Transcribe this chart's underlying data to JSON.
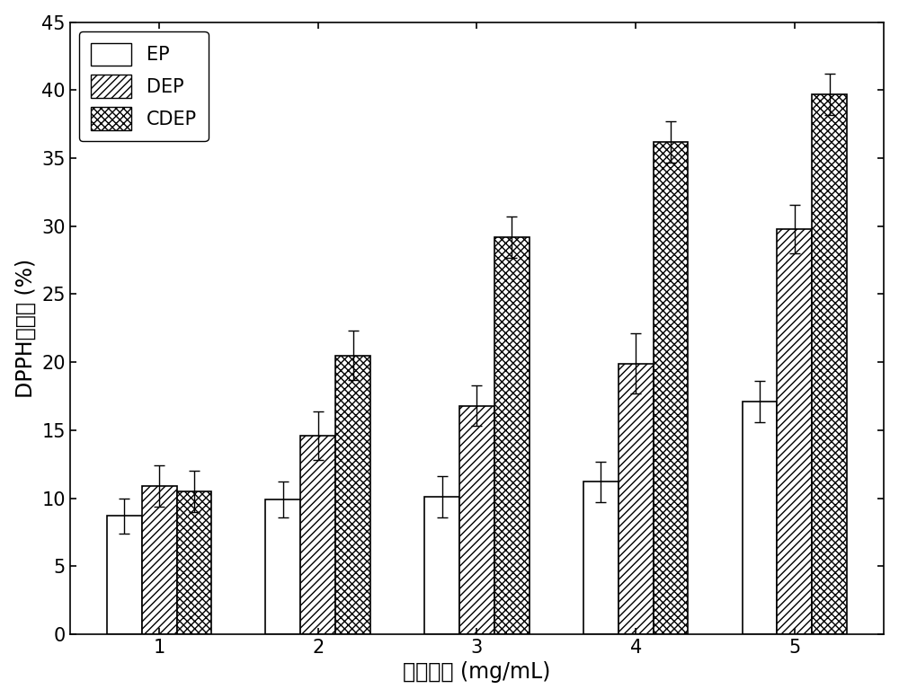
{
  "categories": [
    1,
    2,
    3,
    4,
    5
  ],
  "EP_values": [
    8.7,
    9.9,
    10.1,
    11.2,
    17.1
  ],
  "DEP_values": [
    10.9,
    14.6,
    16.8,
    19.9,
    29.8
  ],
  "CDEP_values": [
    10.5,
    20.5,
    29.2,
    36.2,
    39.7
  ],
  "EP_errors": [
    1.3,
    1.3,
    1.5,
    1.5,
    1.5
  ],
  "DEP_errors": [
    1.5,
    1.8,
    1.5,
    2.2,
    1.8
  ],
  "CDEP_errors": [
    1.5,
    1.8,
    1.5,
    1.5,
    1.5
  ],
  "xlabel": "样品浓度 (mg/mL)",
  "ylabel": "DPPH清除率 (%)",
  "ylim": [
    0,
    45
  ],
  "yticks": [
    0,
    5,
    10,
    15,
    20,
    25,
    30,
    35,
    40,
    45
  ],
  "legend_labels": [
    "EP",
    "DEP",
    "CDEP"
  ],
  "bar_width": 0.22,
  "background_color": "#ffffff",
  "edge_color": "#000000",
  "font_size": 15,
  "label_font_size": 17,
  "tick_font_size": 15
}
